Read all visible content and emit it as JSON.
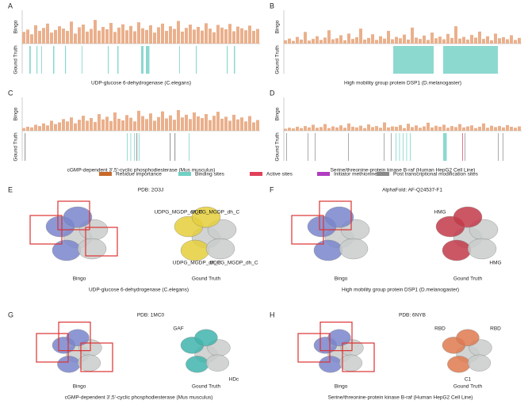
{
  "panels": [
    {
      "label": "A",
      "caption": "UDP-glucose 6-dehydrogenase (C.elegans)",
      "y_labels": [
        "Bingo",
        "Gound Truth"
      ],
      "importance": [
        35,
        42,
        28,
        55,
        38,
        47,
        60,
        33,
        41,
        52,
        45,
        38,
        66,
        30,
        49,
        57,
        36,
        44,
        71,
        39,
        50,
        43,
        62,
        35,
        48,
        58,
        40,
        53,
        37,
        64,
        46,
        41,
        55,
        33,
        49,
        60,
        38,
        52,
        44,
        68,
        36,
        47,
        57,
        42,
        50,
        39,
        61,
        45,
        34,
        56,
        48,
        43,
        59,
        37,
        51,
        46,
        40,
        54,
        38,
        44
      ],
      "binding_sites": [
        [
          3,
          3.6
        ],
        [
          6,
          6.4
        ],
        [
          8,
          8.3
        ],
        [
          13,
          13.5
        ],
        [
          18,
          18.4
        ],
        [
          25,
          25.3
        ],
        [
          36,
          36.4
        ],
        [
          40,
          40.5
        ],
        [
          50,
          51
        ],
        [
          52,
          53.5
        ],
        [
          66,
          66.3
        ],
        [
          73,
          73.4
        ],
        [
          86,
          86.4
        ],
        [
          89,
          89.5
        ]
      ]
    },
    {
      "label": "B",
      "caption": "High mobility group protein DSP1 (D.melanogaster)",
      "y_labels": [
        "Bingo",
        "Gound Truth"
      ],
      "importance": [
        10,
        15,
        8,
        20,
        12,
        35,
        9,
        14,
        22,
        11,
        18,
        40,
        13,
        16,
        25,
        10,
        30,
        14,
        19,
        45,
        12,
        17,
        28,
        11,
        22,
        15,
        38,
        13,
        20,
        16,
        27,
        12,
        48,
        18,
        14,
        24,
        11,
        33,
        16,
        21,
        13,
        29,
        17,
        52,
        15,
        20,
        12,
        26,
        18,
        36,
        14,
        22,
        10,
        30,
        16,
        19,
        13,
        25,
        11,
        17
      ],
      "binding_sites": [
        [
          46,
          63
        ],
        [
          67,
          90
        ]
      ]
    },
    {
      "label": "C",
      "caption": "cGMP-dependent 3',5'-cyclic phosphodiesterase (Mus musculus)",
      "y_labels": [
        "Bingo",
        "Gound Truth"
      ],
      "importance": [
        8,
        12,
        10,
        18,
        14,
        22,
        16,
        30,
        20,
        25,
        35,
        28,
        40,
        22,
        33,
        45,
        30,
        38,
        26,
        50,
        34,
        42,
        29,
        55,
        36,
        31,
        47,
        39,
        28,
        60,
        44,
        35,
        52,
        30,
        41,
        58,
        37,
        46,
        33,
        62,
        40,
        48,
        35,
        55,
        43,
        38,
        50,
        32,
        45,
        57,
        36,
        42,
        30,
        48,
        34,
        40,
        28,
        44,
        25,
        32
      ],
      "binding_sites": [
        [
          44,
          44.3
        ],
        [
          45.5,
          45.8
        ],
        [
          47,
          47.3
        ],
        [
          49,
          49.3
        ],
        [
          70,
          70.3
        ]
      ],
      "ptm_sites": [
        [
          1,
          1.4
        ],
        [
          48,
          48.4
        ],
        [
          62,
          62.4
        ],
        [
          64,
          64.4
        ]
      ]
    },
    {
      "label": "D",
      "caption": "Serine/threonine-protein kinase B-raf (Human HepG2 Cell Line)",
      "y_labels": [
        "Bingo",
        "Gound Truth"
      ],
      "importance": [
        6,
        9,
        7,
        12,
        8,
        14,
        10,
        18,
        9,
        11,
        20,
        8,
        13,
        10,
        16,
        9,
        22,
        12,
        10,
        15,
        8,
        19,
        11,
        14,
        9,
        25,
        10,
        13,
        12,
        17,
        8,
        21,
        11,
        16,
        9,
        13,
        24,
        10,
        15,
        12,
        18,
        9,
        14,
        11,
        20,
        10,
        13,
        16,
        8,
        12,
        22,
        9,
        15,
        11,
        14,
        10,
        17,
        12,
        9,
        13
      ],
      "binding_sites": [
        [
          47,
          47.3
        ],
        [
          48.5,
          48.8
        ],
        [
          50,
          50.3
        ],
        [
          51.5,
          51.8
        ],
        [
          53,
          53.3
        ],
        [
          67,
          68.5
        ]
      ],
      "active_sites": [
        [
          75,
          75.3
        ]
      ],
      "ptm_sites": [
        [
          1,
          1.3
        ],
        [
          10,
          10.3
        ],
        [
          13,
          13.3
        ],
        [
          27,
          27.3
        ],
        [
          42,
          42.3
        ],
        [
          45,
          45.3
        ],
        [
          76,
          76.3
        ],
        [
          90,
          90.3
        ],
        [
          92,
          92.3
        ]
      ]
    }
  ],
  "legend": [
    {
      "name": "Residue importance",
      "color": "#c8692a"
    },
    {
      "name": "Binding sites",
      "color": "#6fd0c4"
    },
    {
      "name": "Active sites",
      "color": "#e0405a"
    },
    {
      "name": "Initiator methionine",
      "color": "#b03cc0"
    },
    {
      "name": "Post transcriptional modification sites",
      "color": "#8a8a8a"
    }
  ],
  "structures": [
    {
      "label": "E",
      "id": "PDB: 2O3J",
      "left": "Bingo",
      "right": "Gound Truth",
      "caption": "UDP-glucose 6-dehydrogenase (C.elegans)",
      "annotations": [
        "UDPG_MGDP_dh_C",
        "UDPG_MGDP_dh_C",
        "UDPG_MGDP_dh_C",
        "UDPG_MGDP_dh_C"
      ]
    },
    {
      "label": "F",
      "id": "AlphaFold: AF-Q24537-F1",
      "left": "Bingo",
      "right": "Gound Truth",
      "caption": "High mobility group protein DSP1 (D.melanogaster)",
      "annotations": [
        "HMG",
        "HMG"
      ]
    },
    {
      "label": "G",
      "id": "PDB: 1MC0",
      "left": "Bingo",
      "right": "Gound Truth",
      "caption": "cGMP-dependent 3',5'-cyclic phosphodiesterase (Mus musculus)",
      "annotations": [
        "GAF",
        "HDc"
      ]
    },
    {
      "label": "H",
      "id": "PDB: 6NYB",
      "left": "Bingo",
      "right": "Gound Truth",
      "caption": "Serine/threonine-protein kinase B-raf (Human HepG2 Cell Line)",
      "annotations": [
        "RBD",
        "C1",
        "RBD"
      ]
    }
  ]
}
